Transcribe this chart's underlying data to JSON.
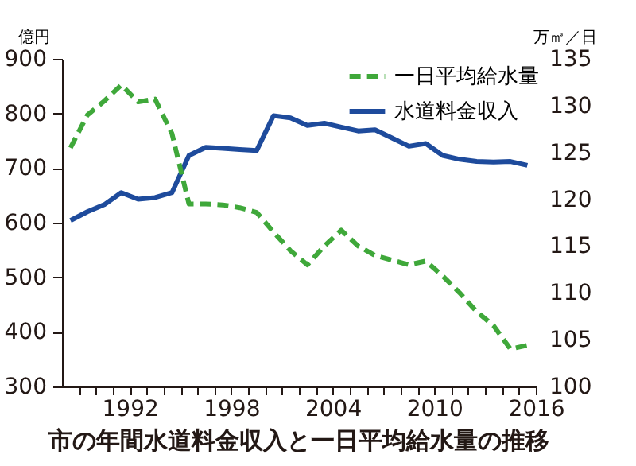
{
  "chart_data": {
    "type": "line",
    "title": "市の年間水道料金収入と一日平均給水量の推移",
    "ylabel": "億円",
    "y2label": "万㎥／日",
    "x": [
      1988.5,
      1989.5,
      1990.5,
      1991.5,
      1992.5,
      1993.5,
      1994.5,
      1995.5,
      1996.5,
      1997.5,
      1998.5,
      1999.5,
      2000.5,
      2001.5,
      2002.5,
      2003.5,
      2004.5,
      2005.5,
      2006.5,
      2007.5,
      2008.5,
      2009.5,
      2010.5,
      2011.5,
      2012.5,
      2013.5,
      2014.5,
      2015.5
    ],
    "series": [
      {
        "name": "一日平均給水量",
        "color": "#3fa83a",
        "axis": "y2",
        "line_style": "dashed",
        "values": [
          125.5,
          129,
          130.5,
          132.2,
          130.4,
          130.7,
          127,
          119.5,
          119.5,
          119.4,
          119.1,
          118.6,
          116.5,
          114.5,
          113,
          115,
          116.7,
          115,
          114,
          113.5,
          113,
          113.4,
          111.8,
          110,
          108,
          106.5,
          104,
          104.4
        ]
      },
      {
        "name": "水道料金収入",
        "color": "#1e4b9c",
        "line_style": "solid",
        "values": [
          604,
          620,
          633,
          655,
          643,
          646,
          655,
          723,
          738,
          736,
          734,
          732,
          796,
          792,
          778,
          782,
          775,
          768,
          770,
          755,
          740,
          745,
          723,
          716,
          712,
          711,
          712,
          705
        ]
      }
    ],
    "xlim": [
      1988,
      2016
    ],
    "xticks": [
      {
        "value": 1989,
        "label": null
      },
      {
        "value": 1990,
        "label": null
      },
      {
        "value": 1991,
        "label": null
      },
      1992,
      {
        "value": 1993,
        "label": null
      },
      {
        "value": 1994,
        "label": null
      },
      {
        "value": 1995,
        "label": null
      },
      {
        "value": 1996,
        "label": null
      },
      {
        "value": 1997,
        "label": null
      },
      1998,
      {
        "value": 1999,
        "label": null
      },
      {
        "value": 2000,
        "label": null
      },
      {
        "value": 2001,
        "label": null
      },
      {
        "value": 2002,
        "label": null
      },
      {
        "value": 2003,
        "label": null
      },
      2004,
      {
        "value": 2005,
        "label": null
      },
      {
        "value": 2006,
        "label": null
      },
      {
        "value": 2007,
        "label": null
      },
      {
        "value": 2008,
        "label": null
      },
      {
        "value": 2009,
        "label": null
      },
      2010,
      {
        "value": 2011,
        "label": null
      },
      {
        "value": 2012,
        "label": null
      },
      {
        "value": 2013,
        "label": null
      },
      {
        "value": 2014,
        "label": null
      },
      {
        "value": 2015,
        "label": null
      },
      2016
    ],
    "ylim": [
      300,
      900
    ],
    "yticks": [
      300,
      400,
      500,
      600,
      700,
      800,
      900
    ],
    "y2lim": [
      100,
      135
    ],
    "y2ticks": [
      100,
      105,
      110,
      115,
      120,
      125,
      130,
      135
    ],
    "grid": false,
    "legend": "top right",
    "marker": "none"
  }
}
